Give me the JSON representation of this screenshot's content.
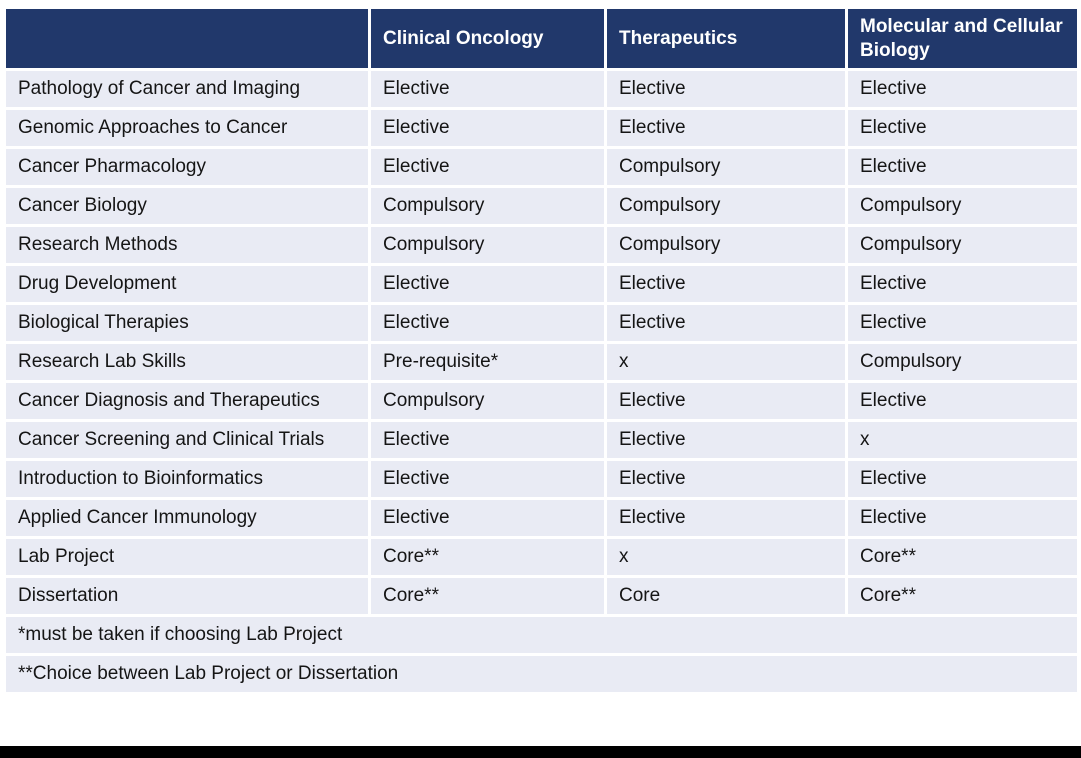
{
  "table": {
    "header": {
      "module_column": "",
      "columns": [
        "Clinical Oncology",
        "Therapeutics",
        "Molecular and Cellular Biology"
      ]
    },
    "rows": [
      {
        "module": "Pathology of Cancer and Imaging",
        "values": [
          "Elective",
          "Elective",
          "Elective"
        ]
      },
      {
        "module": "Genomic Approaches to Cancer",
        "values": [
          "Elective",
          "Elective",
          "Elective"
        ]
      },
      {
        "module": "Cancer Pharmacology",
        "values": [
          "Elective",
          "Compulsory",
          "Elective"
        ]
      },
      {
        "module": "Cancer Biology",
        "values": [
          "Compulsory",
          "Compulsory",
          "Compulsory"
        ]
      },
      {
        "module": "Research Methods",
        "values": [
          "Compulsory",
          "Compulsory",
          "Compulsory"
        ]
      },
      {
        "module": "Drug Development",
        "values": [
          "Elective",
          "Elective",
          "Elective"
        ]
      },
      {
        "module": "Biological Therapies",
        "values": [
          "Elective",
          "Elective",
          "Elective"
        ]
      },
      {
        "module": "Research Lab Skills",
        "values": [
          "Pre-requisite*",
          "x",
          "Compulsory"
        ]
      },
      {
        "module": "Cancer Diagnosis and Therapeutics",
        "values": [
          "Compulsory",
          "Elective",
          "Elective"
        ]
      },
      {
        "module": "Cancer Screening and Clinical Trials",
        "values": [
          "Elective",
          "Elective",
          "x"
        ]
      },
      {
        "module": "Introduction to Bioinformatics",
        "values": [
          "Elective",
          "Elective",
          "Elective"
        ]
      },
      {
        "module": "Applied Cancer Immunology",
        "values": [
          "Elective",
          "Elective",
          "Elective"
        ]
      },
      {
        "module": "Lab Project",
        "values": [
          "Core**",
          "x",
          "Core**"
        ]
      },
      {
        "module": "Dissertation",
        "values": [
          "Core**",
          "Core",
          "Core**"
        ]
      }
    ],
    "footnotes": [
      "*must be taken if choosing Lab Project",
      "**Choice between Lab Project or Dissertation"
    ]
  },
  "colors": {
    "header_bg": "#21386B",
    "header_text": "#FFFFFF",
    "row_bg": "#E9EBF4",
    "grid": "#FFFFFF",
    "text": "#151515",
    "bottom_bar": "#000000"
  }
}
